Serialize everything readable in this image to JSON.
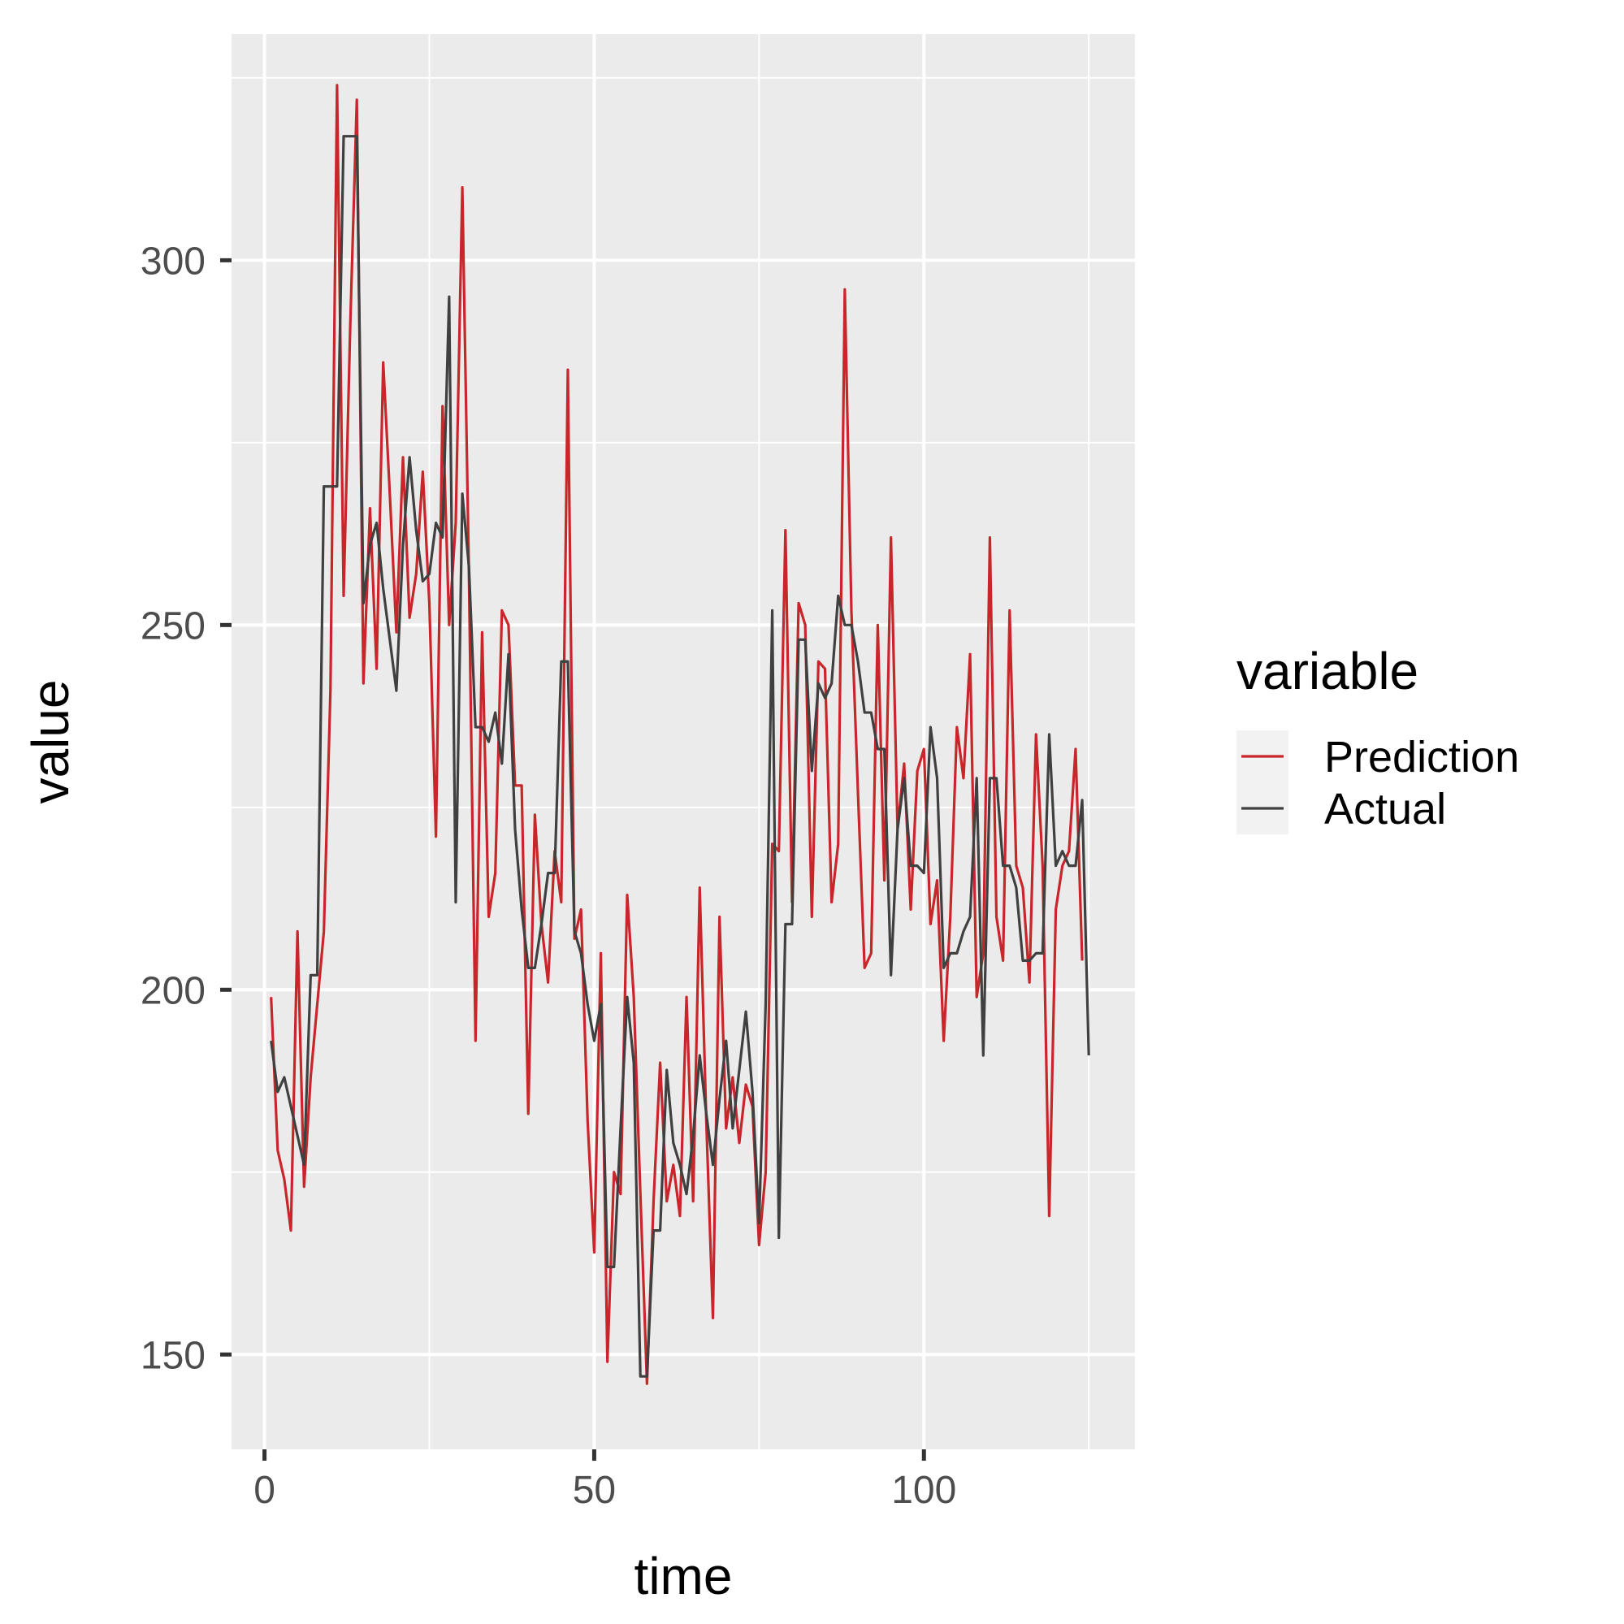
{
  "chart_data": {
    "type": "line",
    "xlabel": "time",
    "ylabel": "value",
    "xlim": [
      -5,
      132
    ],
    "ylim": [
      137,
      331
    ],
    "x_ticks": [
      0,
      50,
      100
    ],
    "y_ticks": [
      150,
      200,
      250,
      300
    ],
    "x_minor_ticks": [
      25,
      75,
      125
    ],
    "y_minor_ticks": [
      175,
      225,
      275,
      325
    ],
    "grid": true,
    "legend": {
      "title": "variable",
      "position": "right"
    },
    "colors": {
      "panel": "#EBEBEB",
      "grid": "#FFFFFF",
      "tick": "#333333"
    },
    "series": [
      {
        "name": "Prediction",
        "color": "#C8262A",
        "values": [
          199,
          178,
          174,
          167,
          208,
          173,
          188,
          198,
          208,
          241,
          324,
          254,
          291,
          322,
          242,
          266,
          244,
          286,
          268,
          249,
          273,
          251,
          257,
          271,
          253,
          221,
          280,
          250,
          264,
          310,
          257,
          193,
          249,
          210,
          216,
          252,
          250,
          228,
          228,
          183,
          224,
          209,
          201,
          219,
          212,
          285,
          207,
          211,
          182,
          164,
          205,
          149,
          175,
          172,
          213,
          199,
          172,
          146,
          171,
          190,
          171,
          176,
          169,
          199,
          171,
          214,
          182,
          155,
          210,
          181,
          188,
          179,
          187,
          184,
          165,
          175,
          220,
          219,
          263,
          212,
          253,
          250,
          210,
          245,
          244,
          212,
          220,
          296,
          252,
          227,
          203,
          205,
          250,
          215,
          262,
          222,
          231,
          211,
          230,
          233,
          209,
          215,
          193,
          210,
          236,
          229,
          246,
          199,
          205,
          262,
          210,
          204,
          252,
          217,
          214,
          201,
          235,
          217,
          169,
          211,
          217,
          219,
          233,
          204
        ]
      },
      {
        "name": "Actual",
        "color": "#404040",
        "values": [
          193,
          186,
          188,
          184,
          180,
          176,
          202,
          202,
          269,
          269,
          269,
          317,
          317,
          317,
          253,
          261,
          264,
          255,
          248,
          241,
          261,
          273,
          263,
          256,
          257,
          264,
          262,
          295,
          212,
          268,
          258,
          236,
          236,
          234,
          238,
          231,
          246,
          222,
          211,
          203,
          203,
          209,
          216,
          216,
          245,
          245,
          208,
          205,
          198,
          193,
          198,
          162,
          162,
          181,
          199,
          190,
          147,
          147,
          167,
          167,
          189,
          179,
          176,
          172,
          180,
          191,
          183,
          176,
          185,
          193,
          181,
          189,
          197,
          186,
          168,
          198,
          252,
          166,
          209,
          209,
          248,
          248,
          230,
          242,
          240,
          242,
          254,
          250,
          250,
          245,
          238,
          238,
          233,
          233,
          202,
          222,
          229,
          217,
          217,
          216,
          236,
          229,
          203,
          205,
          205,
          208,
          210,
          229,
          191,
          229,
          229,
          217,
          217,
          214,
          204,
          204,
          205,
          205,
          235,
          217,
          219,
          217,
          217,
          226,
          191
        ]
      }
    ]
  }
}
